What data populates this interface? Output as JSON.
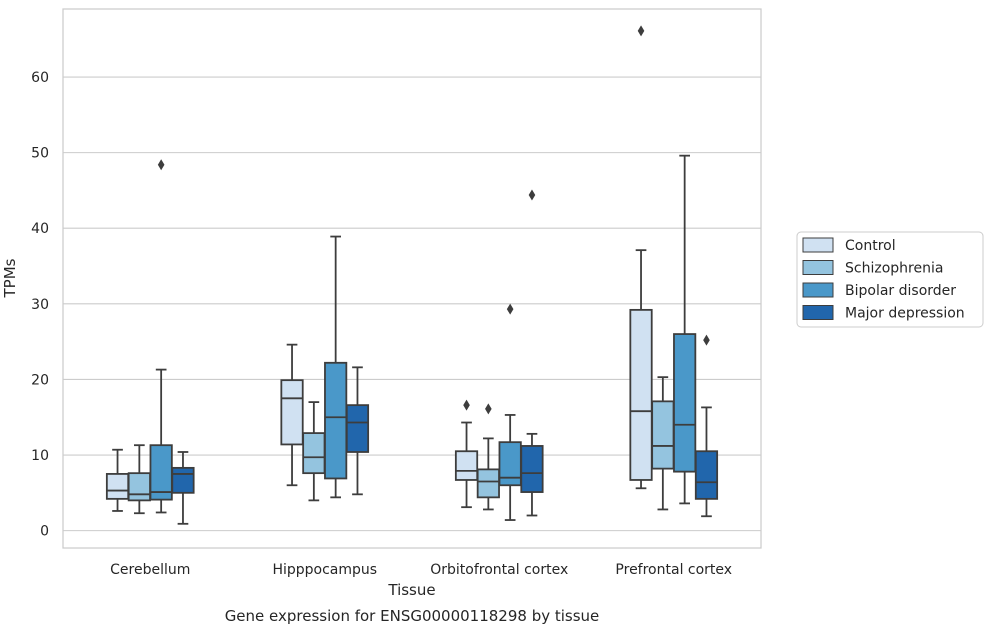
{
  "chart_data": {
    "type": "box",
    "title": "",
    "caption": "Gene expression for ENSG00000118298 by tissue",
    "xlabel": "Tissue",
    "ylabel": "TPMs",
    "ylim": [
      -2.3,
      69
    ],
    "yticks": [
      0,
      10,
      20,
      30,
      40,
      50,
      60
    ],
    "grid": "horizontal",
    "legend_position": "right",
    "categories": [
      "Cerebellum",
      "Hipppocampus",
      "Orbitofrontal cortex",
      "Prefrontal cortex"
    ],
    "series": [
      {
        "name": "Control",
        "color": "#d0e1f2",
        "boxes": [
          {
            "whislo": 2.6,
            "q1": 4.2,
            "med": 5.3,
            "q3": 7.5,
            "whishi": 10.7,
            "fliers": []
          },
          {
            "whislo": 6.0,
            "q1": 11.4,
            "med": 17.5,
            "q3": 19.9,
            "whishi": 24.6,
            "fliers": []
          },
          {
            "whislo": 3.1,
            "q1": 6.7,
            "med": 7.9,
            "q3": 10.5,
            "whishi": 14.3,
            "fliers": [
              16.6
            ]
          },
          {
            "whislo": 5.6,
            "q1": 6.7,
            "med": 15.8,
            "q3": 29.2,
            "whishi": 37.1,
            "fliers": [
              66.1
            ]
          }
        ]
      },
      {
        "name": "Schizophrenia",
        "color": "#94c4df",
        "boxes": [
          {
            "whislo": 2.3,
            "q1": 4.0,
            "med": 4.8,
            "q3": 7.6,
            "whishi": 11.3,
            "fliers": []
          },
          {
            "whislo": 4.0,
            "q1": 7.6,
            "med": 9.7,
            "q3": 12.9,
            "whishi": 17.0,
            "fliers": []
          },
          {
            "whislo": 2.8,
            "q1": 4.4,
            "med": 6.5,
            "q3": 8.1,
            "whishi": 12.2,
            "fliers": [
              16.1
            ]
          },
          {
            "whislo": 2.8,
            "q1": 8.2,
            "med": 11.2,
            "q3": 17.1,
            "whishi": 20.3,
            "fliers": []
          }
        ]
      },
      {
        "name": "Bipolar disorder",
        "color": "#4a98c9",
        "boxes": [
          {
            "whislo": 2.4,
            "q1": 4.1,
            "med": 5.1,
            "q3": 11.3,
            "whishi": 21.3,
            "fliers": [
              48.4
            ]
          },
          {
            "whislo": 4.4,
            "q1": 6.9,
            "med": 15.0,
            "q3": 22.2,
            "whishi": 38.9,
            "fliers": []
          },
          {
            "whislo": 1.4,
            "q1": 6.0,
            "med": 7.0,
            "q3": 11.7,
            "whishi": 15.3,
            "fliers": [
              29.3
            ]
          },
          {
            "whislo": 3.6,
            "q1": 7.8,
            "med": 14.0,
            "q3": 26.0,
            "whishi": 49.6,
            "fliers": []
          }
        ]
      },
      {
        "name": "Major depression",
        "color": "#2166ac",
        "boxes": [
          {
            "whislo": 0.9,
            "q1": 5.0,
            "med": 7.5,
            "q3": 8.3,
            "whishi": 10.4,
            "fliers": []
          },
          {
            "whislo": 4.8,
            "q1": 10.4,
            "med": 14.3,
            "q3": 16.6,
            "whishi": 21.6,
            "fliers": []
          },
          {
            "whislo": 2.0,
            "q1": 5.1,
            "med": 7.6,
            "q3": 11.2,
            "whishi": 12.8,
            "fliers": [
              44.4
            ]
          },
          {
            "whislo": 1.9,
            "q1": 4.2,
            "med": 6.4,
            "q3": 10.5,
            "whishi": 16.3,
            "fliers": [
              25.2
            ]
          }
        ]
      }
    ]
  }
}
